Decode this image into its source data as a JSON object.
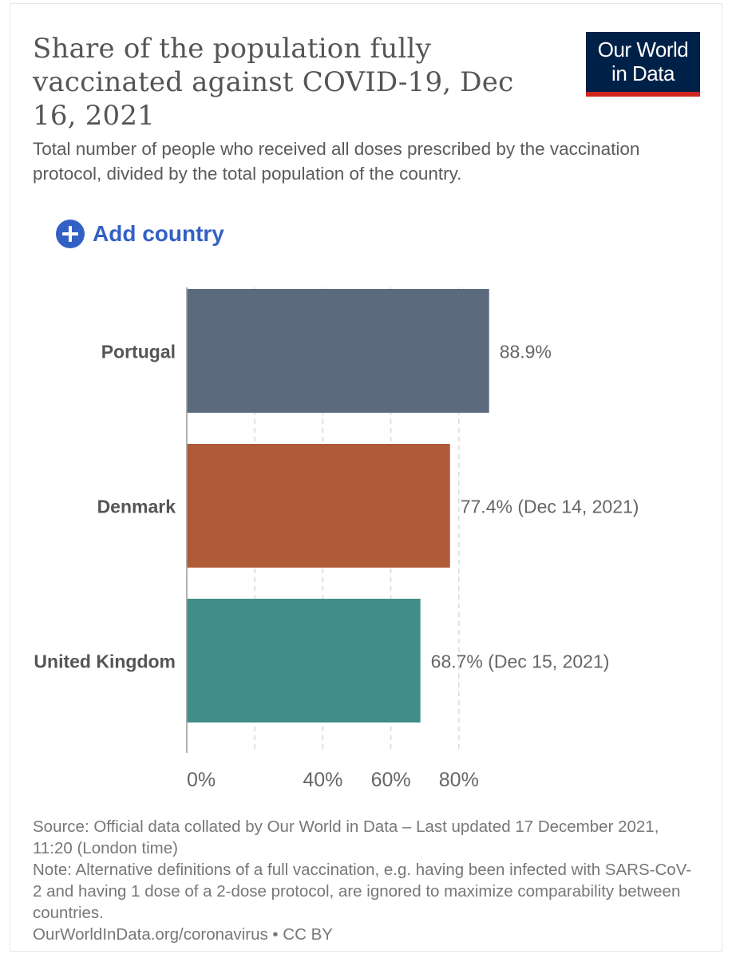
{
  "header": {
    "title": "Share of the population fully vaccinated against COVID-19, Dec 16, 2021",
    "subtitle": "Total number of people who received all doses prescribed by the vaccination protocol, divided by the total population of the country."
  },
  "logo": {
    "line1": "Our World",
    "line2": "in Data"
  },
  "controls": {
    "add_country_label": "Add country",
    "add_country_icon": "plus-circle-icon"
  },
  "chart_data": {
    "type": "bar",
    "orientation": "horizontal",
    "title": "Share of the population fully vaccinated against COVID-19, Dec 16, 2021",
    "categories": [
      "Portugal",
      "Denmark",
      "United Kingdom"
    ],
    "values": [
      88.9,
      77.4,
      68.7
    ],
    "value_labels": [
      "88.9%",
      "77.4% (Dec 14, 2021)",
      "68.7% (Dec 15, 2021)"
    ],
    "colors": [
      "#5b6a7d",
      "#b05a37",
      "#3f8f88"
    ],
    "xlim": [
      0,
      100
    ],
    "gridlines": [
      20,
      40,
      60,
      80
    ],
    "ticks": [
      {
        "value": 0,
        "label": "0%"
      },
      {
        "value": 40,
        "label": "40%"
      },
      {
        "value": 60,
        "label": "60%"
      },
      {
        "value": 80,
        "label": "80%"
      }
    ],
    "xlabel": "",
    "ylabel": ""
  },
  "footer": {
    "source": "Source: Official data collated by Our World in Data – Last updated 17 December 2021, 11:20 (London time)",
    "note": "Note: Alternative definitions of a full vaccination, e.g. having been infected with SARS-CoV-2 and having 1 dose of a 2-dose protocol, are ignored to maximize comparability between countries.",
    "link": "OurWorldInData.org/coronavirus • CC BY"
  }
}
